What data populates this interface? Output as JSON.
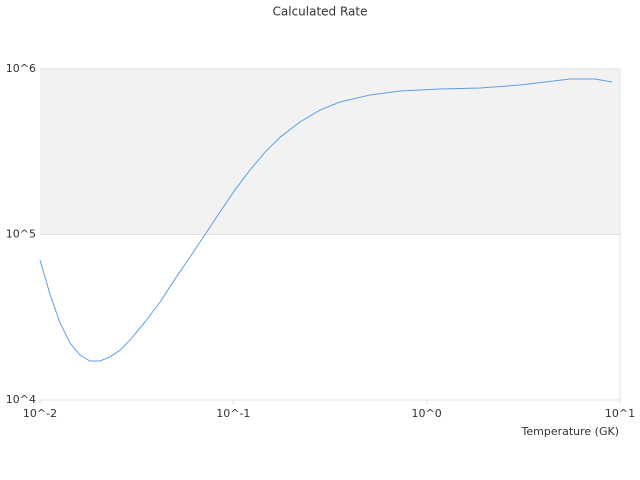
{
  "chart_data": {
    "type": "line",
    "title": "Calculated Rate",
    "x_label": "Temperature (GK)",
    "log_x": true,
    "log_y": true,
    "band_color": "#f2f2f2",
    "grid": true,
    "xlim": [
      0.01,
      10
    ],
    "ylim": [
      10000,
      1000000
    ],
    "xticks": [
      {
        "value": 0.01,
        "label": "10^-2"
      },
      {
        "value": 0.1,
        "label": "10^-1"
      },
      {
        "value": 1,
        "label": "10^0"
      },
      {
        "value": 10,
        "label": "10^1"
      }
    ],
    "yticks": [
      {
        "value": 10000,
        "label": "10^4"
      },
      {
        "value": 100000,
        "label": "10^5"
      },
      {
        "value": 1000000,
        "label": "10^6"
      }
    ],
    "series": [
      {
        "color": "#5aa0e6",
        "x": [
          0.01,
          0.0113,
          0.0127,
          0.0143,
          0.0161,
          0.0181,
          0.0204,
          0.023,
          0.0259,
          0.0292,
          0.0349,
          0.0418,
          0.0499,
          0.0597,
          0.0714,
          0.0853,
          0.102,
          0.122,
          0.146,
          0.175,
          0.221,
          0.281,
          0.356,
          0.51,
          0.728,
          1.17,
          1.89,
          3.04,
          5.52,
          7.43,
          9.1
        ],
        "values": [
          70000,
          43000,
          29200,
          22100,
          18700,
          17200,
          17200,
          18200,
          20000,
          23000,
          29600,
          39100,
          53800,
          73100,
          100000,
          136800,
          185800,
          245400,
          315000,
          388000,
          478500,
          565000,
          632000,
          697000,
          736000,
          757000,
          768000,
          800000,
          870000,
          870000,
          834000
        ]
      }
    ]
  }
}
